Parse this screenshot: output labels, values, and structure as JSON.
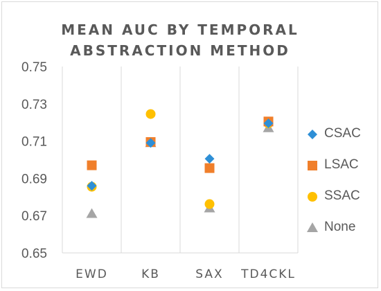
{
  "chart_data": {
    "type": "scatter",
    "title_lines": [
      "MEAN AUC BY TEMPORAL",
      "ABSTRACTION METHOD"
    ],
    "categories": [
      "EWD",
      "KB",
      "SAX",
      "TD4CKL"
    ],
    "ylim": [
      0.65,
      0.75
    ],
    "yticks": [
      "0.75",
      "0.73",
      "0.71",
      "0.69",
      "0.67",
      "0.65"
    ],
    "ytick_values": [
      0.75,
      0.73,
      0.71,
      0.69,
      0.67,
      0.65
    ],
    "grid": "vertical",
    "legend_position": "right",
    "series": [
      {
        "name": "CSAC",
        "marker": "diamond",
        "color": "#2e8fd6",
        "values": [
          0.686,
          0.709,
          0.7005,
          0.7195
        ]
      },
      {
        "name": "LSAC",
        "marker": "square",
        "color": "#f07f2b",
        "values": [
          0.697,
          0.7095,
          0.6955,
          0.7205
        ]
      },
      {
        "name": "SSAC",
        "marker": "circle",
        "color": "#ffc000",
        "values": [
          0.6855,
          0.7245,
          0.6762,
          0.7195
        ]
      },
      {
        "name": "None",
        "marker": "triangle",
        "color": "#a5a5a5",
        "values": [
          0.671,
          0.709,
          0.674,
          0.717
        ]
      }
    ]
  }
}
